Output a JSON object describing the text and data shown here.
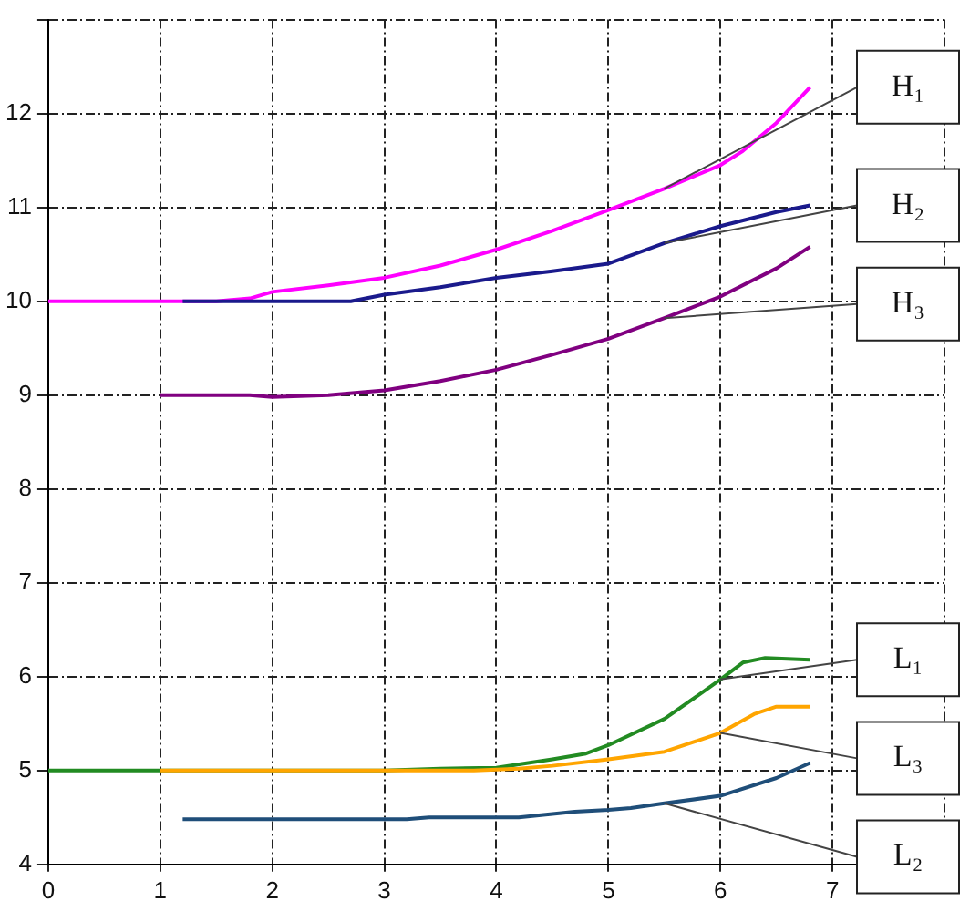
{
  "chart_data": {
    "type": "line",
    "xlim": [
      0,
      8
    ],
    "xticks": [
      0,
      1,
      2,
      3,
      4,
      5,
      6,
      7,
      {
        "value": 8,
        "label": null
      }
    ],
    "ylim": [
      4,
      13
    ],
    "yticks": [
      4,
      5,
      6,
      7,
      8,
      9,
      10,
      11,
      12,
      {
        "value": 13,
        "label": null
      }
    ],
    "grid": true,
    "legend": false,
    "marker": "none",
    "line_style": "solid",
    "series": [
      {
        "name": "H₁",
        "color": "#ff00ff",
        "x": [
          0,
          1,
          1.5,
          1.8,
          2,
          2.5,
          3,
          3.5,
          4,
          4.5,
          5,
          5.5,
          6,
          6.2,
          6.5,
          6.8
        ],
        "values": [
          10,
          10,
          10,
          10.03,
          10.1,
          10.17,
          10.25,
          10.38,
          10.55,
          10.75,
          10.97,
          11.2,
          11.45,
          11.6,
          11.9,
          12.28
        ]
      },
      {
        "name": "H₂",
        "color": "#1a1a8c",
        "x": [
          1.2,
          2,
          2.7,
          3,
          3.5,
          4,
          4.5,
          5,
          5.5,
          6,
          6.5,
          6.8
        ],
        "values": [
          10,
          10,
          10,
          10.07,
          10.15,
          10.25,
          10.32,
          10.4,
          10.62,
          10.8,
          10.95,
          11.02
        ]
      },
      {
        "name": "H₃",
        "color": "#800080",
        "x": [
          1,
          1.8,
          2,
          2.5,
          3,
          3.5,
          4,
          4.5,
          5,
          5.5,
          6,
          6.5,
          6.8
        ],
        "values": [
          9,
          9,
          8.98,
          9,
          9.05,
          9.15,
          9.27,
          9.43,
          9.6,
          9.82,
          10.05,
          10.35,
          10.58
        ]
      },
      {
        "name": "L₁",
        "color": "#228b22",
        "x": [
          0,
          1,
          3,
          3.5,
          4,
          4.5,
          4.8,
          5,
          5.5,
          5.8,
          6,
          6.2,
          6.4,
          6.8
        ],
        "values": [
          5,
          5,
          5,
          5.02,
          5.03,
          5.12,
          5.18,
          5.27,
          5.55,
          5.8,
          5.97,
          6.15,
          6.2,
          6.18
        ]
      },
      {
        "name": "L₃",
        "color": "#ffa500",
        "x": [
          1,
          3,
          3.8,
          4.2,
          4.5,
          5,
          5.5,
          6,
          6.3,
          6.5,
          6.8
        ],
        "values": [
          5,
          5,
          5,
          5.02,
          5.05,
          5.12,
          5.2,
          5.4,
          5.6,
          5.68,
          5.68
        ]
      },
      {
        "name": "L₂",
        "color": "#1f4e79",
        "x": [
          1.2,
          2,
          3.2,
          3.4,
          4.2,
          4.7,
          5,
          5.2,
          5.5,
          6,
          6.5,
          6.8
        ],
        "values": [
          4.48,
          4.48,
          4.48,
          4.5,
          4.5,
          4.56,
          4.58,
          4.6,
          4.65,
          4.73,
          4.92,
          5.08
        ]
      }
    ]
  }
}
